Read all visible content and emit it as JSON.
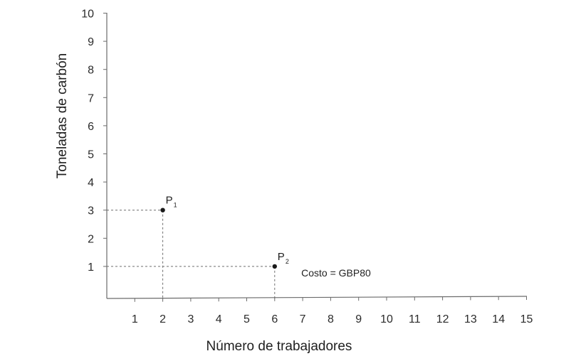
{
  "chart_data": {
    "type": "scatter",
    "title": "",
    "xlabel": "Número de trabajadores",
    "ylabel": "Toneladas de carbón",
    "xlim": [
      0,
      15
    ],
    "ylim": [
      0,
      10
    ],
    "x_ticks": [
      1,
      2,
      3,
      4,
      5,
      6,
      7,
      8,
      9,
      10,
      11,
      12,
      13,
      14,
      15
    ],
    "y_ticks": [
      1,
      2,
      3,
      4,
      5,
      6,
      7,
      8,
      9,
      10
    ],
    "grid": false,
    "points": [
      {
        "label": "P",
        "subscript": "1",
        "x": 2,
        "y": 3
      },
      {
        "label": "P",
        "subscript": "2",
        "x": 6,
        "y": 1
      }
    ],
    "annotations": [
      {
        "text": "Costo = GBP80",
        "x": 6.95,
        "y": 0.8
      }
    ]
  }
}
